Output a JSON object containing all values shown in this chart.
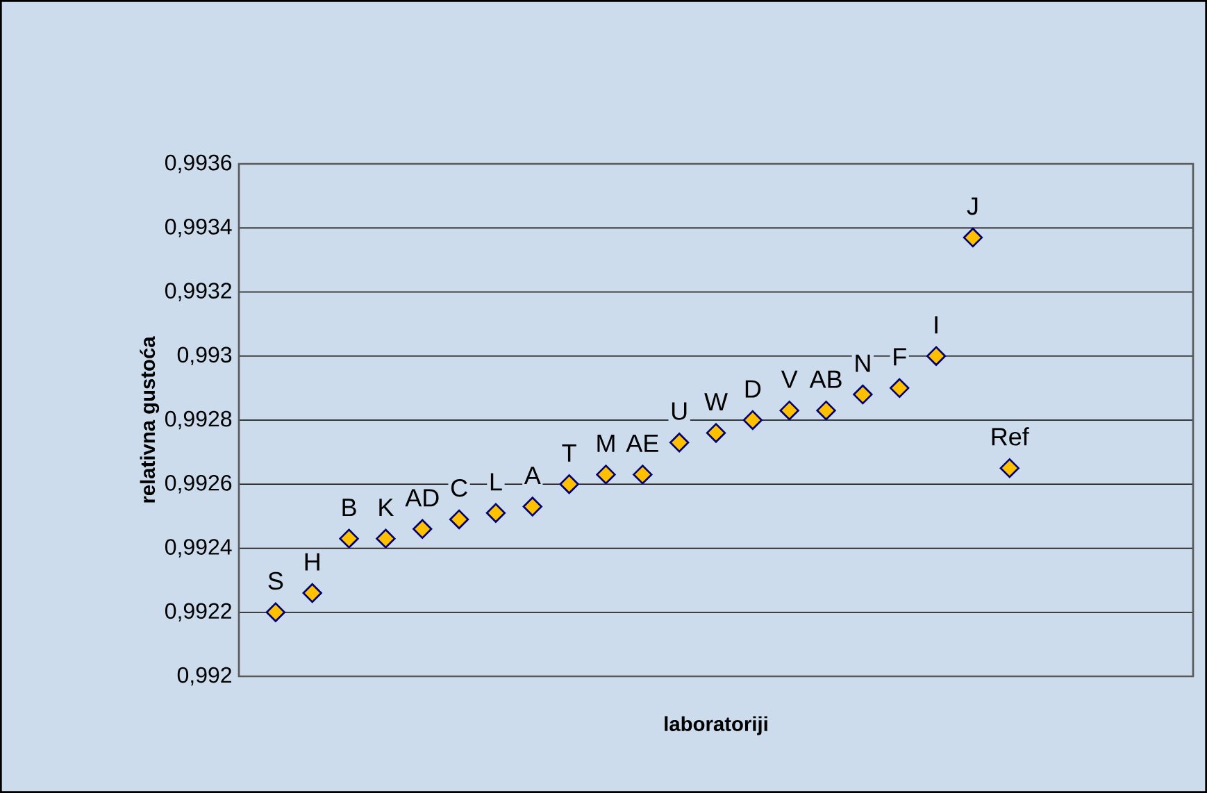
{
  "chart_data": {
    "type": "scatter",
    "xlabel": "laboratoriji",
    "ylabel": "relativna gustoća",
    "categories": [
      "S",
      "H",
      "B",
      "K",
      "AD",
      "C",
      "L",
      "A",
      "T",
      "M",
      "AE",
      "U",
      "W",
      "D",
      "V",
      "AB",
      "N",
      "F",
      "I",
      "J",
      "Ref"
    ],
    "values": [
      0.9922,
      0.99226,
      0.99243,
      0.99243,
      0.99246,
      0.99249,
      0.99251,
      0.99253,
      0.9926,
      0.99263,
      0.99263,
      0.99273,
      0.99276,
      0.9928,
      0.99283,
      0.99283,
      0.99288,
      0.9929,
      0.993,
      0.99337,
      0.99265
    ],
    "color": "#ffc000",
    "marker": "diamond",
    "ylim": [
      0.992,
      0.9936
    ],
    "yticks": [
      {
        "value": 0.992,
        "label": "0,992"
      },
      {
        "value": 0.9922,
        "label": "0,9922"
      },
      {
        "value": 0.9924,
        "label": "0,9924"
      },
      {
        "value": 0.9926,
        "label": "0,9926"
      },
      {
        "value": 0.9928,
        "label": "0,9928"
      },
      {
        "value": 0.993,
        "label": "0,993"
      },
      {
        "value": 0.9932,
        "label": "0,9932"
      },
      {
        "value": 0.9934,
        "label": "0,9934"
      },
      {
        "value": 0.9936,
        "label": "0,9936"
      }
    ],
    "grid": "y",
    "tick_labels": "y"
  }
}
